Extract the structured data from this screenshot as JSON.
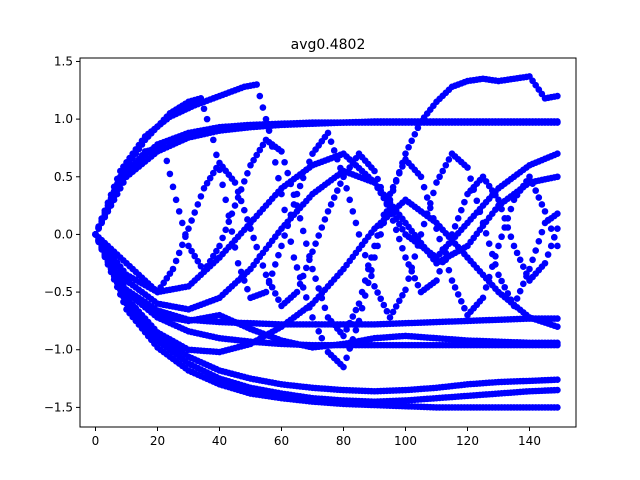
{
  "chart_data": {
    "type": "scatter",
    "title": "avg0.4802",
    "xlabel": "",
    "ylabel": "",
    "xlim": [
      -5,
      155
    ],
    "ylim": [
      -1.67,
      1.53
    ],
    "x_ticks": [
      0,
      20,
      40,
      60,
      80,
      100,
      120,
      140
    ],
    "y_ticks": [
      -1.5,
      -1.0,
      -0.5,
      0.0,
      0.5,
      1.0,
      1.5
    ],
    "x_tick_labels": [
      "0",
      "20",
      "40",
      "60",
      "80",
      "100",
      "120",
      "140"
    ],
    "y_tick_labels": [
      "−1.5",
      "−1.0",
      "−0.5",
      "0.0",
      "0.5",
      "1.0",
      "1.5"
    ],
    "grid": false,
    "marker_color": "#0000ff",
    "series": [
      {
        "x": [
          0,
          10,
          20,
          30,
          40,
          50,
          60,
          70,
          80,
          90,
          100,
          110,
          120,
          130,
          140,
          149
        ],
        "y": [
          0,
          0.55,
          0.78,
          0.88,
          0.93,
          0.95,
          0.96,
          0.97,
          0.97,
          0.97,
          0.97,
          0.97,
          0.97,
          0.97,
          0.97,
          0.97
        ]
      },
      {
        "x": [
          0,
          10,
          20,
          30,
          40,
          50,
          60,
          70,
          80,
          90,
          100,
          110,
          120,
          130,
          140,
          149
        ],
        "y": [
          0,
          0.5,
          0.72,
          0.84,
          0.9,
          0.93,
          0.95,
          0.96,
          0.97,
          0.98,
          0.98,
          0.98,
          0.98,
          0.98,
          0.98,
          0.98
        ]
      },
      {
        "x": [
          0,
          10,
          20,
          30,
          40,
          50,
          60,
          70,
          80,
          90,
          100,
          110,
          120,
          130,
          140,
          149
        ],
        "y": [
          0,
          -0.5,
          -0.72,
          -0.84,
          -0.9,
          -0.93,
          -0.95,
          -0.96,
          -0.96,
          -0.96,
          -0.96,
          -0.96,
          -0.96,
          -0.96,
          -0.96,
          -0.96
        ]
      },
      {
        "x": [
          0,
          10,
          20,
          30,
          40,
          50,
          60,
          70,
          80,
          90,
          100,
          110,
          120,
          130,
          140,
          149
        ],
        "y": [
          0,
          -0.48,
          -0.66,
          -0.74,
          -0.76,
          -0.77,
          -0.78,
          -0.78,
          -0.78,
          -0.78,
          -0.77,
          -0.76,
          -0.75,
          -0.74,
          -0.73,
          -0.73
        ]
      },
      {
        "x": [
          0,
          10,
          20,
          30,
          40,
          50,
          60,
          70,
          80,
          90,
          100,
          110,
          120,
          130,
          140,
          149
        ],
        "y": [
          0,
          -0.65,
          -0.98,
          -1.18,
          -1.3,
          -1.38,
          -1.42,
          -1.45,
          -1.47,
          -1.48,
          -1.49,
          -1.5,
          -1.5,
          -1.5,
          -1.5,
          -1.5
        ]
      },
      {
        "x": [
          0,
          10,
          20,
          30,
          40,
          50,
          60,
          70,
          80,
          90,
          100,
          110,
          120,
          130,
          140,
          149
        ],
        "y": [
          0,
          -0.6,
          -0.92,
          -1.12,
          -1.25,
          -1.33,
          -1.38,
          -1.42,
          -1.44,
          -1.45,
          -1.44,
          -1.42,
          -1.4,
          -1.38,
          -1.36,
          -1.35
        ]
      },
      {
        "x": [
          0,
          10,
          20,
          30,
          40,
          50,
          60,
          70,
          80,
          90,
          100,
          110,
          120,
          130,
          140,
          149
        ],
        "y": [
          0,
          -0.58,
          -0.88,
          -1.06,
          -1.18,
          -1.25,
          -1.3,
          -1.33,
          -1.35,
          -1.36,
          -1.35,
          -1.33,
          -1.3,
          -1.28,
          -1.27,
          -1.26
        ]
      },
      {
        "x": [
          0,
          8,
          16,
          24,
          32,
          40,
          48,
          52,
          56,
          60,
          64,
          70,
          75,
          80,
          85,
          90,
          95,
          100,
          105,
          110,
          115,
          120,
          125,
          130,
          135,
          140,
          145,
          149
        ],
        "y": [
          0,
          0.55,
          0.85,
          1.02,
          1.12,
          1.2,
          1.28,
          1.3,
          0.9,
          0.35,
          -0.2,
          -0.72,
          -1.02,
          -1.15,
          -0.75,
          -0.2,
          0.3,
          0.7,
          0.98,
          1.15,
          1.28,
          1.33,
          1.35,
          1.33,
          1.35,
          1.37,
          1.18,
          1.2
        ]
      },
      {
        "x": [
          0,
          8,
          16,
          24,
          30,
          34,
          38,
          42,
          46,
          50,
          55,
          60,
          65,
          70,
          75,
          80,
          85,
          90,
          95,
          100,
          105,
          110,
          115,
          120,
          125,
          130,
          135,
          140,
          145,
          149
        ],
        "y": [
          0,
          0.5,
          0.82,
          1.05,
          1.15,
          1.18,
          0.82,
          0.3,
          -0.25,
          -0.55,
          -0.5,
          -0.1,
          0.35,
          0.7,
          0.88,
          0.5,
          0.0,
          -0.45,
          -0.72,
          -0.48,
          0.0,
          0.45,
          0.7,
          0.58,
          0.1,
          -0.35,
          -0.62,
          -0.3,
          0.1,
          0.18
        ]
      },
      {
        "x": [
          0,
          8,
          16,
          22,
          26,
          30,
          35,
          40,
          45,
          50,
          55,
          60,
          65,
          70,
          75,
          80,
          85,
          90,
          95,
          100,
          105,
          110,
          115,
          120,
          125,
          130,
          135,
          140,
          145,
          149
        ],
        "y": [
          0,
          0.45,
          0.72,
          0.75,
          0.3,
          -0.1,
          -0.32,
          -0.1,
          0.25,
          0.6,
          0.82,
          0.72,
          0.25,
          -0.3,
          -0.72,
          -0.88,
          -0.6,
          -0.1,
          0.35,
          0.65,
          0.5,
          0.05,
          -0.4,
          -0.7,
          -0.55,
          -0.1,
          0.3,
          0.5,
          0.2,
          -0.1
        ]
      },
      {
        "x": [
          0,
          10,
          20,
          25,
          30,
          35,
          40,
          45,
          50,
          55,
          60,
          65,
          70,
          75,
          80,
          85,
          90,
          95,
          100,
          105,
          110,
          115,
          120,
          125,
          130,
          135,
          140,
          145,
          149
        ],
        "y": [
          0,
          -0.25,
          -0.5,
          -0.3,
          0.05,
          0.4,
          0.62,
          0.45,
          0.05,
          -0.35,
          -0.62,
          -0.5,
          -0.15,
          0.2,
          0.5,
          0.7,
          0.55,
          0.2,
          -0.2,
          -0.5,
          -0.4,
          0.0,
          0.35,
          0.5,
          0.3,
          -0.1,
          -0.4,
          -0.25,
          0.05
        ]
      },
      {
        "x": [
          0,
          10,
          20,
          30,
          40,
          50,
          60,
          70,
          80,
          90,
          100,
          110,
          120,
          130,
          140,
          149
        ],
        "y": [
          0,
          -0.4,
          -0.6,
          -0.65,
          -0.55,
          -0.3,
          0.05,
          0.35,
          0.55,
          0.45,
          0.1,
          -0.25,
          -0.1,
          0.25,
          0.45,
          0.5
        ]
      },
      {
        "x": [
          0,
          10,
          20,
          30,
          40,
          50,
          60,
          70,
          80,
          90,
          100,
          110,
          120,
          130,
          140,
          149
        ],
        "y": [
          0,
          -0.35,
          -0.5,
          -0.45,
          -0.2,
          0.1,
          0.4,
          0.6,
          0.7,
          0.45,
          0.0,
          -0.2,
          0.1,
          0.4,
          0.6,
          0.7
        ]
      },
      {
        "x": [
          0,
          10,
          20,
          30,
          40,
          50,
          60,
          70,
          80,
          90,
          100,
          110,
          120,
          130,
          140,
          149
        ],
        "y": [
          0,
          -0.55,
          -0.85,
          -1.0,
          -1.02,
          -0.95,
          -0.8,
          -0.6,
          -0.3,
          0.05,
          0.3,
          0.1,
          -0.2,
          -0.5,
          -0.72,
          -0.8
        ]
      },
      {
        "x": [
          0,
          10,
          20,
          30,
          40,
          50,
          60,
          70,
          80,
          90,
          100,
          110,
          120,
          130,
          140,
          149
        ],
        "y": [
          0,
          -0.5,
          -0.7,
          -0.75,
          -0.7,
          -0.82,
          -0.92,
          -0.98,
          -0.95,
          -0.9,
          -0.88,
          -0.9,
          -0.92,
          -0.93,
          -0.94,
          -0.94
        ]
      }
    ]
  }
}
